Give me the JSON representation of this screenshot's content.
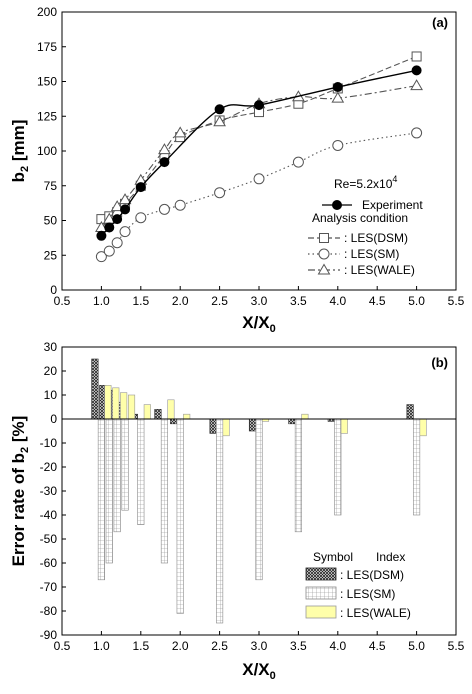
{
  "chart_data": [
    {
      "type": "line",
      "panel_label": "(a)",
      "ylabel_main": "b",
      "ylabel_sub": "2",
      "ylabel_rest": " [mm]",
      "xlabel_main": "X/X",
      "xlabel_sub": "0",
      "xlim": [
        0.5,
        5.5
      ],
      "ylim": [
        0,
        200
      ],
      "xticks": [
        0.5,
        1.0,
        1.5,
        2.0,
        2.5,
        3.0,
        3.5,
        4.0,
        4.5,
        5.0,
        5.5
      ],
      "yticks": [
        0,
        25,
        50,
        75,
        100,
        125,
        150,
        175,
        200
      ],
      "grid": false,
      "legend_position": "right",
      "legend_title_main": "Re=5.2x10",
      "legend_title_sup": "4",
      "legend_group_label": "Analysis condition",
      "series": [
        {
          "name": "Experiment",
          "x": [
            1.0,
            1.1,
            1.2,
            1.3,
            1.5,
            1.8,
            2.5,
            3.0,
            4.0,
            5.0
          ],
          "y": [
            39,
            45,
            51,
            58,
            74,
            92,
            130,
            133,
            146,
            158
          ],
          "color": "#000000",
          "marker": "filled-circle",
          "line": "solid"
        },
        {
          "name": ": LES(DSM)",
          "x": [
            1.0,
            1.1,
            1.2,
            1.3,
            1.5,
            1.8,
            2.0,
            2.5,
            3.0,
            3.5,
            4.0,
            5.0
          ],
          "y": [
            51,
            53,
            56,
            62,
            75,
            97,
            110,
            122,
            128,
            134,
            145,
            168
          ],
          "color": "#555555",
          "marker": "square",
          "line": "dashed"
        },
        {
          "name": ": LES(SM)",
          "x": [
            1.0,
            1.1,
            1.2,
            1.3,
            1.5,
            1.8,
            2.0,
            2.5,
            3.0,
            3.5,
            4.0,
            5.0
          ],
          "y": [
            24,
            28,
            34,
            42,
            52,
            58,
            61,
            70,
            80,
            92,
            104,
            113
          ],
          "color": "#555555",
          "marker": "circle",
          "line": "dotted"
        },
        {
          "name": ": LES(WALE)",
          "x": [
            1.0,
            1.1,
            1.2,
            1.3,
            1.5,
            1.8,
            2.0,
            2.5,
            3.0,
            3.5,
            4.0,
            5.0
          ],
          "y": [
            45,
            51,
            60,
            65,
            79,
            101,
            113,
            121,
            134,
            139,
            138,
            147
          ],
          "color": "#555555",
          "marker": "triangle",
          "line": "dashdot"
        }
      ]
    },
    {
      "type": "bar",
      "panel_label": "(b)",
      "ylabel_main": "Error rate of b",
      "ylabel_sub": "2",
      "ylabel_rest": " [%]",
      "xlabel_main": "X/X",
      "xlabel_sub": "0",
      "xlim": [
        0.5,
        5.5
      ],
      "ylim": [
        -90,
        30
      ],
      "xticks": [
        0.5,
        1.0,
        1.5,
        2.0,
        2.5,
        3.0,
        3.5,
        4.0,
        4.5,
        5.0,
        5.5
      ],
      "yticks": [
        -90,
        -80,
        -70,
        -60,
        -50,
        -40,
        -30,
        -20,
        -10,
        0,
        10,
        20,
        30
      ],
      "grid": false,
      "legend_position": "bottom-right",
      "legend_header_symbol": "Symbol",
      "legend_header_index": "Index",
      "x": [
        1.0,
        1.1,
        1.2,
        1.3,
        1.5,
        1.8,
        2.0,
        2.5,
        3.0,
        3.5,
        4.0,
        5.0
      ],
      "series": [
        {
          "name": ": LES(DSM)",
          "values": [
            25,
            14,
            12,
            7,
            2,
            4,
            -2,
            -6,
            -5,
            -2,
            -1,
            6
          ],
          "pattern": "crosshatch"
        },
        {
          "name": ": LES(SM)",
          "values": [
            -67,
            -60,
            -47,
            -38,
            -44,
            -60,
            -81,
            -85,
            -67,
            -47,
            -40,
            -40
          ],
          "pattern": "grid"
        },
        {
          "name": ": LES(WALE)",
          "values": [
            14,
            13,
            11,
            10,
            6,
            8,
            2,
            -7,
            -1,
            2,
            -6,
            -7
          ],
          "color": "#ffffaa"
        }
      ]
    }
  ]
}
